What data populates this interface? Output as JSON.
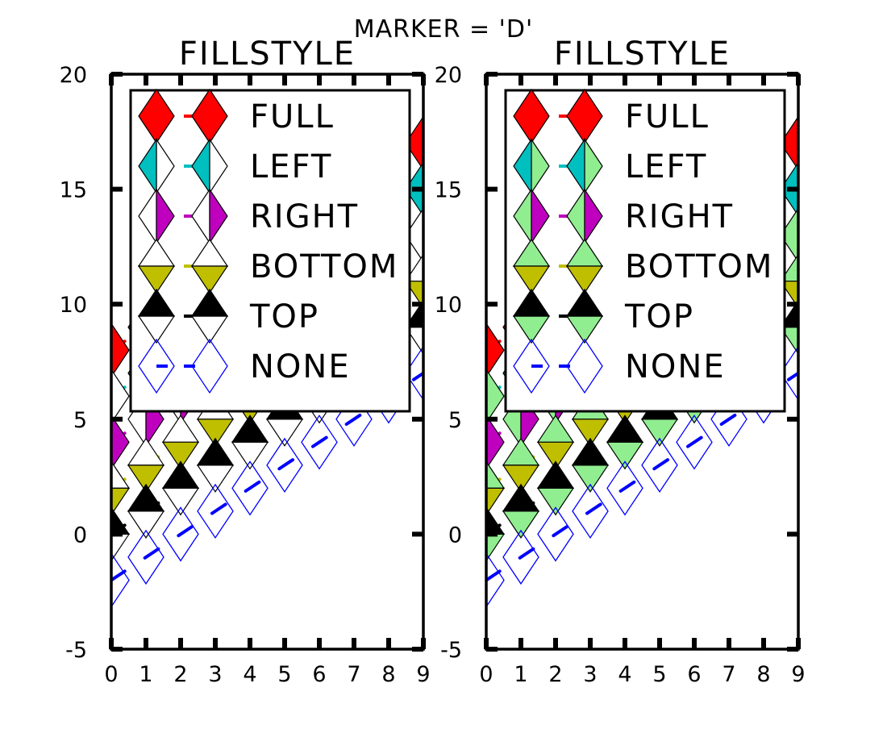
{
  "chart_data": {
    "type": "line",
    "suptitle": "MARKER = 'D'",
    "x": [
      0,
      1,
      2,
      3,
      4,
      5,
      6,
      7,
      8,
      9
    ],
    "xlim": [
      0,
      9
    ],
    "ylim": [
      -5,
      20
    ],
    "xticks": [
      0,
      1,
      2,
      3,
      4,
      5,
      6,
      7,
      8,
      9
    ],
    "yticks": [
      -5,
      0,
      5,
      10,
      15,
      20
    ],
    "grid": false,
    "legend_position": "upper-left",
    "series": [
      {
        "name": "FULL",
        "offset": 8,
        "line_color": "#ff0000",
        "fill_color": "#ff0000"
      },
      {
        "name": "LEFT",
        "offset": 6,
        "line_color": "#00bfbf",
        "fill_color": "#00bfbf"
      },
      {
        "name": "RIGHT",
        "offset": 4,
        "line_color": "#bf00bf",
        "fill_color": "#bf00bf"
      },
      {
        "name": "BOTTOM",
        "offset": 2,
        "line_color": "#bfbf00",
        "fill_color": "#bfbf00"
      },
      {
        "name": "TOP",
        "offset": 0,
        "line_color": "#000000",
        "fill_color": "#000000"
      },
      {
        "name": "NONE",
        "offset": -2,
        "line_color": "#0000ff",
        "fill_color": "none"
      }
    ],
    "subplots": [
      {
        "title": "FILLSTYLE",
        "fill_alt": "#ffffff"
      },
      {
        "title": "FILLSTYLE",
        "fill_alt": "#90ee90"
      }
    ]
  }
}
